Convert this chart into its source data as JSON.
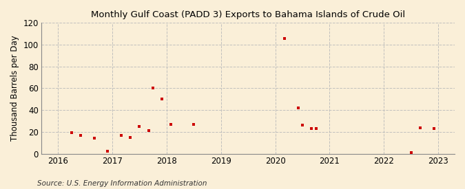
{
  "title": "Monthly Gulf Coast (PADD 3) Exports to Bahama Islands of Crude Oil",
  "ylabel": "Thousand Barrels per Day",
  "source": "Source: U.S. Energy Information Administration",
  "background_color": "#faefd8",
  "plot_bg_color": "#f5f0e8",
  "marker_color": "#cc0000",
  "grid_color": "#bbbbbb",
  "xlim": [
    2015.7,
    2023.3
  ],
  "ylim": [
    0,
    120
  ],
  "yticks": [
    0,
    20,
    40,
    60,
    80,
    100,
    120
  ],
  "xticks": [
    2016,
    2017,
    2018,
    2019,
    2020,
    2021,
    2022,
    2023
  ],
  "data_points": [
    [
      2016.25,
      19
    ],
    [
      2016.42,
      17
    ],
    [
      2016.67,
      14
    ],
    [
      2016.92,
      2
    ],
    [
      2017.17,
      17
    ],
    [
      2017.33,
      15
    ],
    [
      2017.5,
      25
    ],
    [
      2017.67,
      21
    ],
    [
      2017.75,
      60
    ],
    [
      2017.92,
      50
    ],
    [
      2018.08,
      27
    ],
    [
      2018.5,
      27
    ],
    [
      2020.17,
      106
    ],
    [
      2020.42,
      42
    ],
    [
      2020.5,
      26
    ],
    [
      2020.67,
      23
    ],
    [
      2020.75,
      23
    ],
    [
      2022.5,
      1
    ],
    [
      2022.67,
      24
    ],
    [
      2022.92,
      23
    ]
  ]
}
